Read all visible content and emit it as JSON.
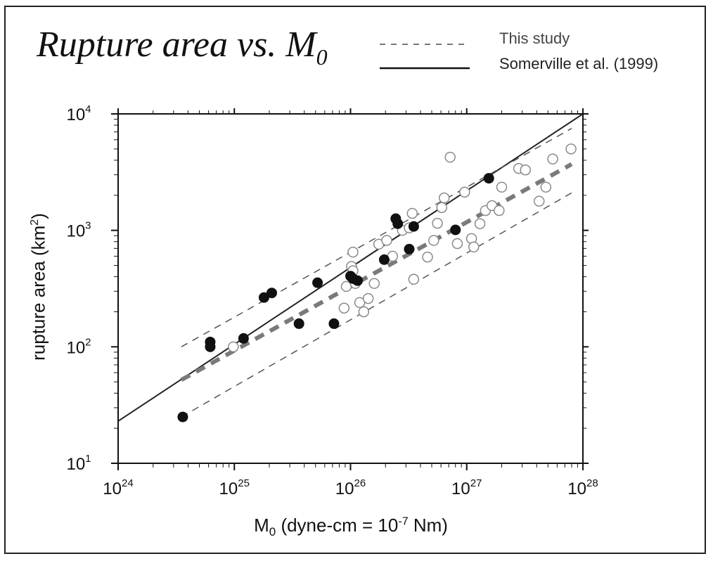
{
  "chart_data": {
    "type": "scatter",
    "title": "Rupture area vs. M",
    "title_subscript": "0",
    "xlabel": "M",
    "xlabel_subscript": "0",
    "xlabel_units": " (dyne-cm = 10",
    "xlabel_units_exp": "-7",
    "xlabel_units_end": " Nm)",
    "ylabel": "rupture area (km",
    "ylabel_exp": "2",
    "ylabel_end": ")",
    "x_scale": "log",
    "y_scale": "log",
    "xlim": [
      1e+24,
      1e+28
    ],
    "ylim": [
      10,
      10000
    ],
    "x_ticks": [
      {
        "base": "10",
        "exp": "24",
        "value": 1e+24
      },
      {
        "base": "10",
        "exp": "25",
        "value": 1e+25
      },
      {
        "base": "10",
        "exp": "26",
        "value": 1e+26
      },
      {
        "base": "10",
        "exp": "27",
        "value": 1e+27
      },
      {
        "base": "10",
        "exp": "28",
        "value": 1e+28
      }
    ],
    "y_ticks": [
      {
        "base": "10",
        "exp": "1",
        "value": 10
      },
      {
        "base": "10",
        "exp": "2",
        "value": 100
      },
      {
        "base": "10",
        "exp": "3",
        "value": 1000
      },
      {
        "base": "10",
        "exp": "4",
        "value": 10000
      }
    ],
    "legend": {
      "placement": "top-right",
      "entries": [
        {
          "label": "This study",
          "style": "dashed"
        },
        {
          "label": "Somerville et al. (1999)",
          "style": "solid"
        }
      ]
    },
    "lines": [
      {
        "legend_ref": "Somerville et al. (1999)",
        "style": "solid",
        "color": "#222222",
        "x": [
          1e+24,
          1e+28
        ],
        "y": [
          23,
          10000
        ]
      },
      {
        "legend_ref": "This study",
        "style": "dashed",
        "color": "#7a7a7a",
        "x": [
          3.5e+24,
          8e+27
        ],
        "y": [
          52,
          3700
        ]
      },
      {
        "style": "dashed-thin",
        "color": "#555555",
        "x": [
          3.5e+24,
          8e+27
        ],
        "y": [
          100,
          7500
        ]
      },
      {
        "style": "dashed-thin",
        "color": "#555555",
        "x": [
          3.5e+24,
          8e+27
        ],
        "y": [
          25,
          2100
        ]
      }
    ],
    "series": [
      {
        "marker": "filled",
        "color": "#111111",
        "x": [
          3.6e+24,
          6.2e+24,
          6.2e+24,
          1.2e+25,
          1.8e+25,
          2.1e+25,
          3.6e+25,
          5.2e+25,
          7.2e+25,
          1e+26,
          1.05e+26,
          1.15e+26,
          1.95e+26,
          2.45e+26,
          2.55e+26,
          3.2e+26,
          3.5e+26,
          8e+26,
          1.55e+27
        ],
        "y": [
          25,
          110,
          100,
          118,
          265,
          290,
          158,
          355,
          158,
          405,
          385,
          370,
          560,
          1260,
          1140,
          690,
          1080,
          1010,
          2800
        ]
      },
      {
        "marker": "open",
        "color": "#8a8a8a",
        "x": [
          9.8e+24,
          8.8e+25,
          9.2e+25,
          1.02e+26,
          1.05e+26,
          1.1e+26,
          1.2e+26,
          1.3e+26,
          1.42e+26,
          1.6e+26,
          1.75e+26,
          2.05e+26,
          2.3e+26,
          2.8e+26,
          3.2e+26,
          3.4e+26,
          3.5e+26,
          4.6e+26,
          5.2e+26,
          5.6e+26,
          6.1e+26,
          7.2e+26,
          8.3e+26,
          9.6e+26,
          1.1e+27,
          1.15e+27,
          1.3e+27,
          1.45e+27,
          1.65e+27,
          1.9e+27,
          2e+27,
          2.8e+27,
          3.2e+27,
          4.2e+27,
          4.8e+27,
          5.5e+27,
          7.9e+27,
          6.4e+26,
          1.05e+26
        ],
        "y": [
          100,
          215,
          330,
          490,
          650,
          350,
          240,
          200,
          260,
          350,
          760,
          820,
          600,
          1000,
          1050,
          1400,
          380,
          590,
          820,
          1150,
          1570,
          4250,
          770,
          2130,
          850,
          720,
          1140,
          1480,
          1630,
          1480,
          2350,
          3400,
          3300,
          1780,
          2350,
          4100,
          5000,
          1900,
          450
        ]
      }
    ],
    "grid": false
  }
}
